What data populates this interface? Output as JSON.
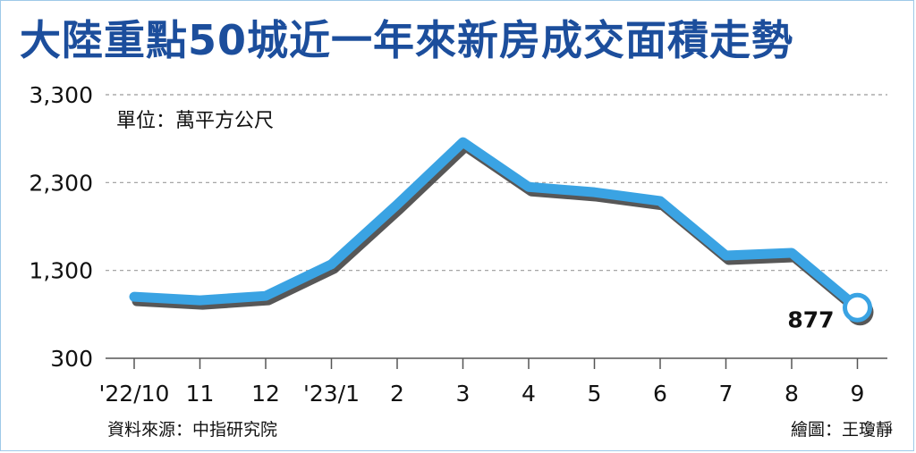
{
  "title": "大陸重點50城近一年來新房成交面積走勢",
  "unit_label": "單位：萬平方公尺",
  "source": "資料來源：中指研究院",
  "credit": "繪圖：王瓊靜",
  "colors": {
    "title": "#1c4e9c",
    "line": "#3aa3e3",
    "shadow": "#3a3a3a",
    "grid": "#9a9a9a"
  },
  "chart_data": {
    "type": "line",
    "title": "大陸重點50城近一年來新房成交面積走勢",
    "unit": "萬平方公尺",
    "categories": [
      "'22/10",
      "11",
      "12",
      "'23/1",
      "2",
      "3",
      "4",
      "5",
      "6",
      "7",
      "8",
      "9"
    ],
    "series": [
      {
        "values": [
          1000,
          960,
          1010,
          1370,
          2050,
          2760,
          2250,
          2190,
          2090,
          1470,
          1500,
          877
        ]
      }
    ],
    "ylim": [
      300,
      3300
    ],
    "yticks": [
      "3,300",
      "2,300",
      "1,300",
      "300"
    ],
    "grid": true,
    "annotations": [
      {
        "index": 11,
        "text": "877"
      }
    ]
  }
}
